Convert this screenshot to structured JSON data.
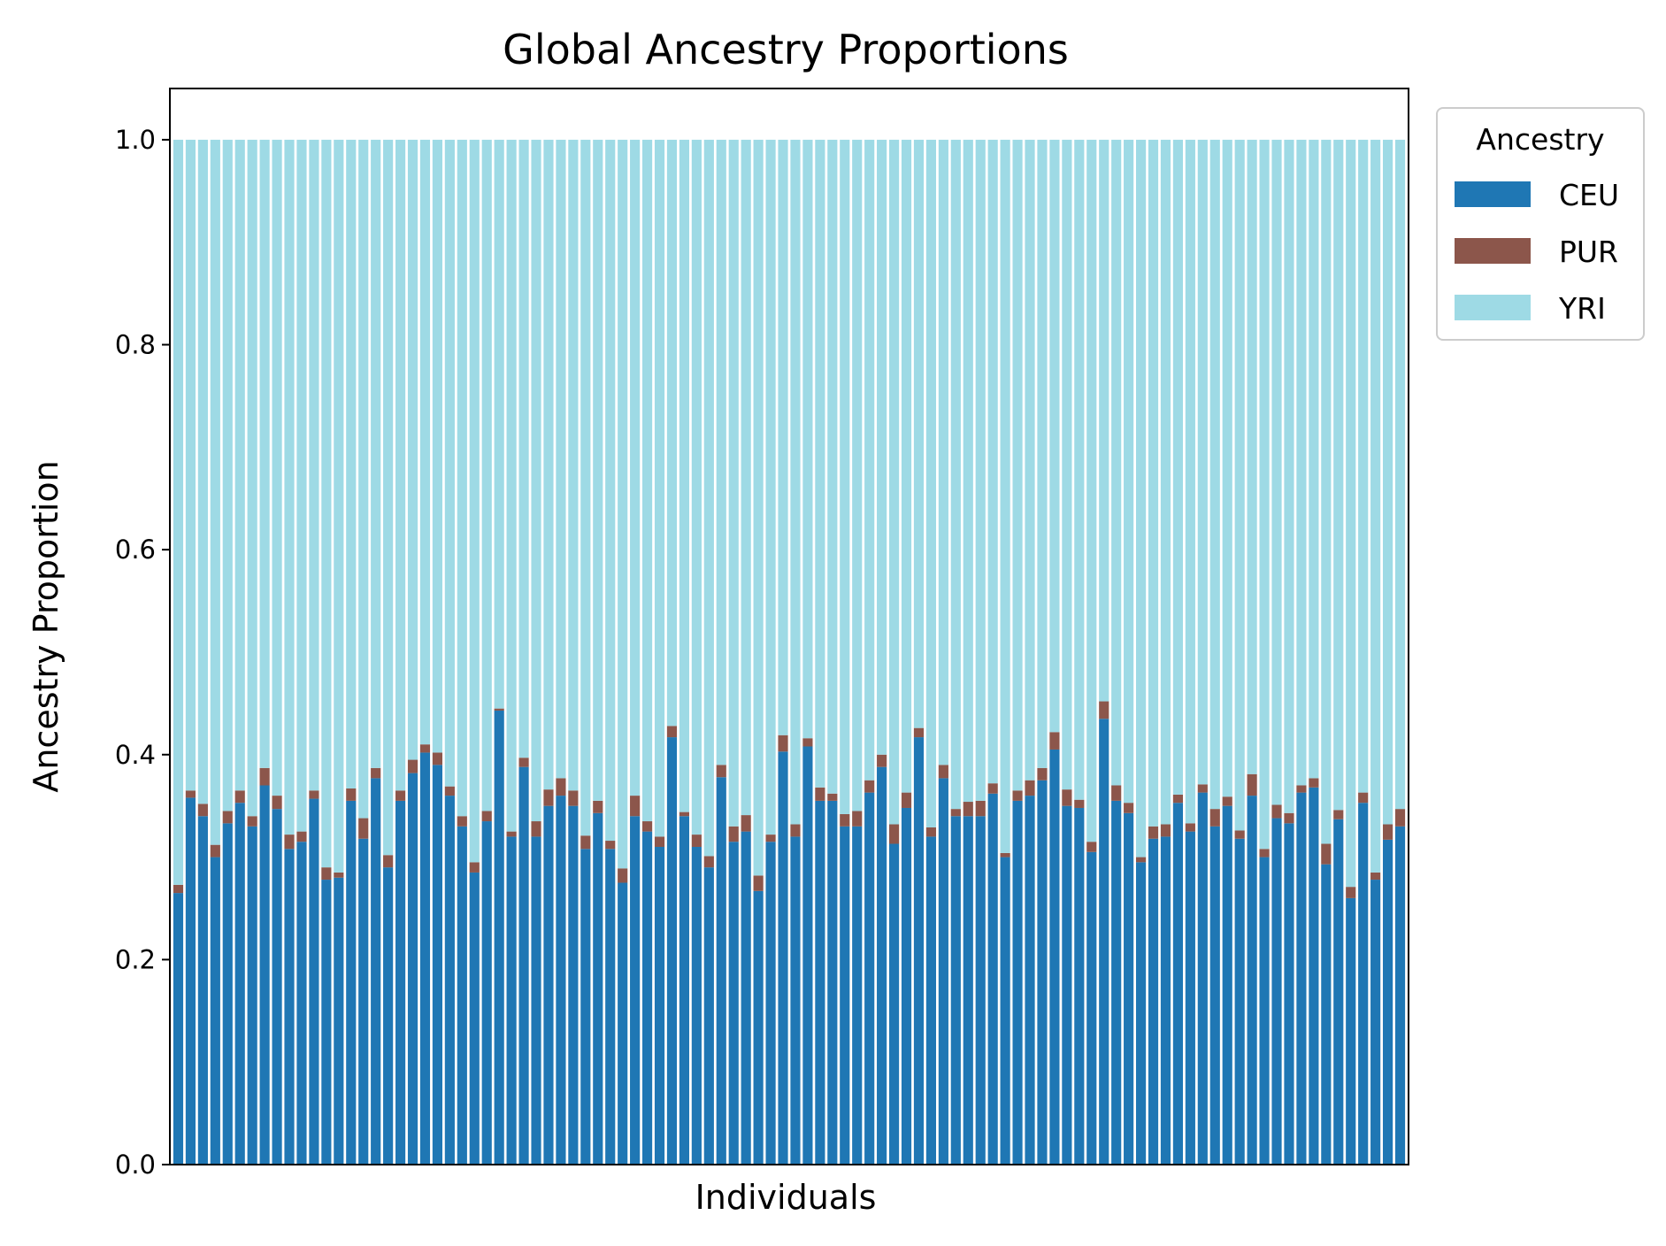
{
  "chart_data": {
    "type": "bar",
    "stacked": true,
    "title": "Global Ancestry Proportions",
    "xlabel": "Individuals",
    "ylabel": "Ancestry Proportion",
    "ylim": [
      0,
      1.05
    ],
    "yticks": [
      "0.0",
      "0.2",
      "0.4",
      "0.6",
      "0.8",
      "1.0"
    ],
    "x_tick_labels_shown": false,
    "grid": false,
    "legend": {
      "title": "Ancestry",
      "placement": "outside upper right"
    },
    "categories_count": 100,
    "series": [
      {
        "name": "CEU",
        "color": "#1f77b4",
        "values": [
          0.265,
          0.358,
          0.34,
          0.3,
          0.333,
          0.353,
          0.33,
          0.37,
          0.347,
          0.308,
          0.315,
          0.357,
          0.278,
          0.28,
          0.355,
          0.318,
          0.377,
          0.29,
          0.355,
          0.382,
          0.402,
          0.39,
          0.36,
          0.33,
          0.285,
          0.335,
          0.443,
          0.32,
          0.388,
          0.32,
          0.35,
          0.36,
          0.35,
          0.308,
          0.343,
          0.308,
          0.275,
          0.34,
          0.325,
          0.31,
          0.417,
          0.34,
          0.31,
          0.29,
          0.378,
          0.315,
          0.325,
          0.267,
          0.315,
          0.403,
          0.32,
          0.408,
          0.355,
          0.355,
          0.33,
          0.33,
          0.363,
          0.388,
          0.313,
          0.348,
          0.417,
          0.32,
          0.377,
          0.34,
          0.34,
          0.34,
          0.362,
          0.3,
          0.355,
          0.36,
          0.375,
          0.405,
          0.35,
          0.348,
          0.305,
          0.435,
          0.355,
          0.343,
          0.295,
          0.318,
          0.32,
          0.353,
          0.325,
          0.363,
          0.33,
          0.35,
          0.318,
          0.36,
          0.3,
          0.338,
          0.333,
          0.363,
          0.368,
          0.293,
          0.337,
          0.26,
          0.353,
          0.278,
          0.317,
          0.33
        ]
      },
      {
        "name": "PUR",
        "color": "#8c564b",
        "values": [
          0.008,
          0.007,
          0.012,
          0.012,
          0.012,
          0.012,
          0.01,
          0.017,
          0.013,
          0.014,
          0.01,
          0.008,
          0.012,
          0.005,
          0.012,
          0.02,
          0.01,
          0.012,
          0.01,
          0.013,
          0.008,
          0.012,
          0.009,
          0.01,
          0.01,
          0.01,
          0.002,
          0.005,
          0.009,
          0.015,
          0.016,
          0.017,
          0.015,
          0.013,
          0.012,
          0.008,
          0.014,
          0.02,
          0.01,
          0.01,
          0.011,
          0.004,
          0.012,
          0.011,
          0.012,
          0.015,
          0.016,
          0.015,
          0.007,
          0.016,
          0.012,
          0.008,
          0.013,
          0.007,
          0.012,
          0.015,
          0.012,
          0.012,
          0.019,
          0.015,
          0.009,
          0.009,
          0.013,
          0.007,
          0.014,
          0.015,
          0.01,
          0.004,
          0.01,
          0.015,
          0.012,
          0.017,
          0.016,
          0.008,
          0.01,
          0.017,
          0.015,
          0.01,
          0.005,
          0.012,
          0.012,
          0.008,
          0.008,
          0.008,
          0.017,
          0.009,
          0.008,
          0.021,
          0.008,
          0.013,
          0.01,
          0.007,
          0.009,
          0.02,
          0.009,
          0.011,
          0.01,
          0.007,
          0.015,
          0.017
        ]
      },
      {
        "name": "YRI",
        "color": "#9edae5",
        "values": [
          0.727,
          0.635,
          0.648,
          0.688,
          0.655,
          0.635,
          0.66,
          0.613,
          0.64,
          0.678,
          0.675,
          0.635,
          0.71,
          0.715,
          0.633,
          0.662,
          0.613,
          0.698,
          0.635,
          0.605,
          0.59,
          0.598,
          0.631,
          0.66,
          0.705,
          0.655,
          0.555,
          0.675,
          0.603,
          0.665,
          0.634,
          0.623,
          0.635,
          0.679,
          0.645,
          0.684,
          0.711,
          0.64,
          0.665,
          0.68,
          0.572,
          0.656,
          0.678,
          0.699,
          0.61,
          0.67,
          0.659,
          0.718,
          0.678,
          0.581,
          0.668,
          0.584,
          0.632,
          0.638,
          0.658,
          0.655,
          0.625,
          0.6,
          0.668,
          0.637,
          0.574,
          0.671,
          0.61,
          0.653,
          0.646,
          0.645,
          0.628,
          0.696,
          0.635,
          0.625,
          0.613,
          0.578,
          0.634,
          0.644,
          0.685,
          0.548,
          0.63,
          0.647,
          0.7,
          0.67,
          0.668,
          0.639,
          0.667,
          0.629,
          0.653,
          0.641,
          0.674,
          0.619,
          0.692,
          0.649,
          0.657,
          0.63,
          0.623,
          0.687,
          0.654,
          0.729,
          0.637,
          0.715,
          0.668,
          0.653
        ]
      }
    ]
  }
}
